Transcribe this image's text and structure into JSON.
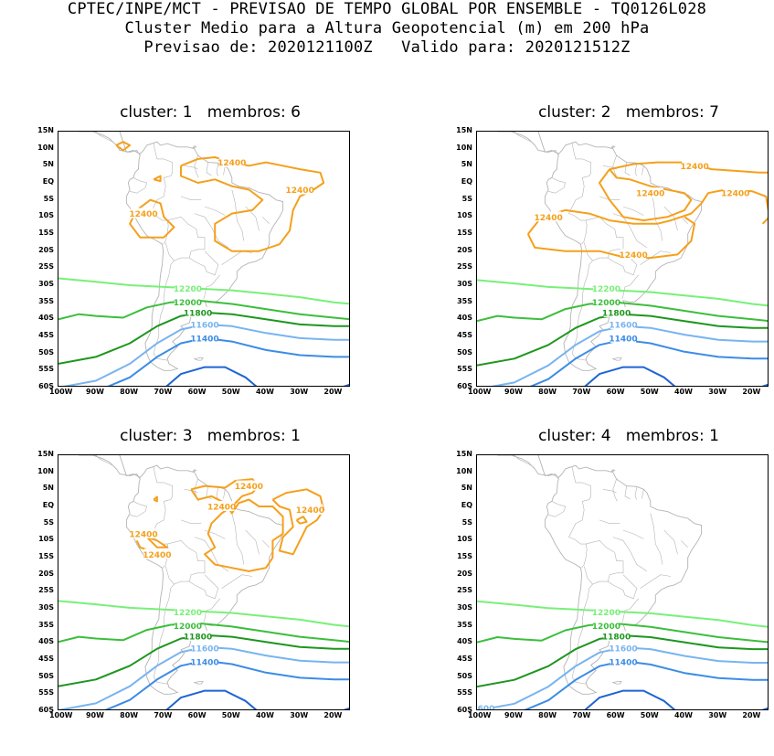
{
  "header": {
    "line1": "CPTEC/INPE/MCT - PREVISAO DE TEMPO GLOBAL POR ENSEMBLE - TQ0126L028",
    "line2": "Cluster Medio para a Altura Geopotencial (m) em 200 hPa",
    "line3": "Previsao de: 2020121100Z   Valido para: 2020121512Z"
  },
  "axes": {
    "lat_labels": [
      "15N",
      "10N",
      "5N",
      "EQ",
      "5S",
      "10S",
      "15S",
      "20S",
      "25S",
      "30S",
      "35S",
      "40S",
      "45S",
      "50S",
      "55S",
      "60S"
    ],
    "lon_labels": [
      "100W",
      "90W",
      "80W",
      "70W",
      "60W",
      "50W",
      "40W",
      "30W",
      "20W"
    ]
  },
  "colors": {
    "c12400": "#f5a01c",
    "c12200": "#78f078",
    "c12000": "#3cbe3c",
    "c11800": "#1e961e",
    "c11600": "#78b4f0",
    "c11400": "#3c8ce6",
    "c11200": "#1e64d2",
    "coast": "#b4b4b4"
  },
  "contour_labels": {
    "c12400": "12400",
    "c12200": "12200",
    "c12000": "12000",
    "c11800": "11800",
    "c11600": "11600",
    "c11400": "11400"
  },
  "panels": [
    {
      "title": "cluster: 1   membros: 6"
    },
    {
      "title": "cluster: 2   membros: 7"
    },
    {
      "title": "cluster: 3   membros: 1"
    },
    {
      "title": "cluster: 4   membros: 1"
    }
  ]
}
